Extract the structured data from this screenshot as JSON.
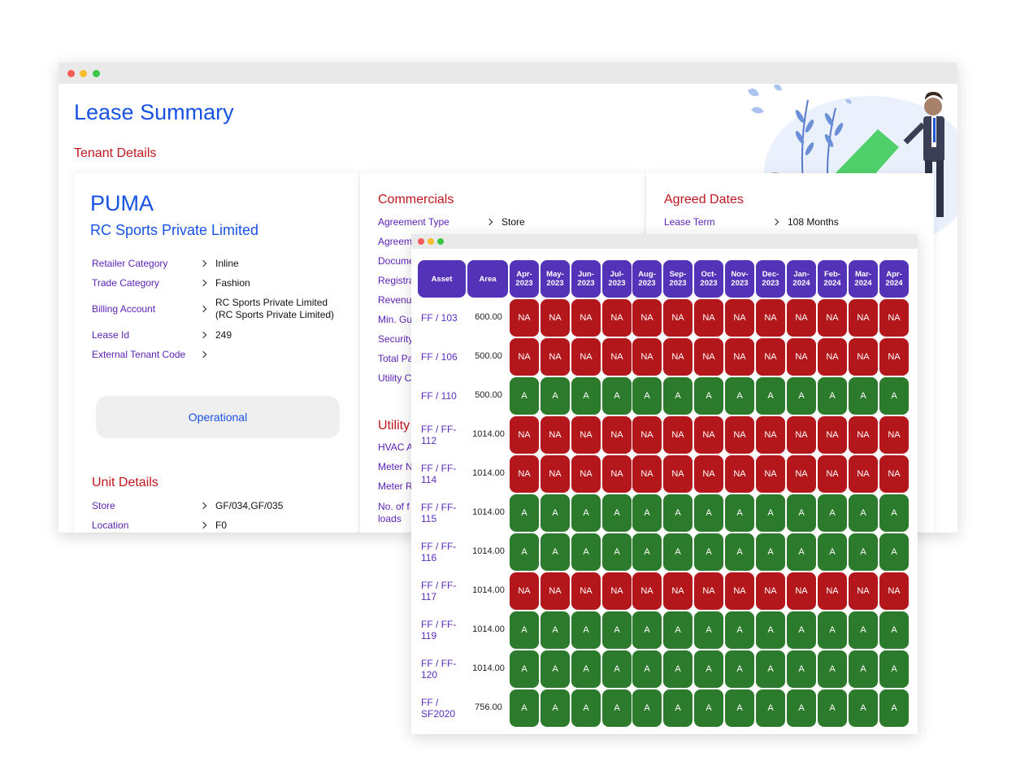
{
  "main": {
    "page_title": "Lease Summary",
    "tenant_section_title": "Tenant Details",
    "tenant": {
      "brand": "PUMA",
      "company": "RC Sports Private Limited",
      "details": [
        {
          "label": "Retailer Category",
          "value": "Inline"
        },
        {
          "label": "Trade Category",
          "value": "Fashion"
        },
        {
          "label": "Billing Account",
          "value": "RC Sports Private Limited",
          "value2": "(RC Sports Private Limited)"
        },
        {
          "label": "Lease Id",
          "value": "249"
        },
        {
          "label": "External Tenant Code",
          "value": ""
        }
      ],
      "status": "Operational",
      "unit_section_title": "Unit Details",
      "unit_details": [
        {
          "label": "Store",
          "value": "GF/034,GF/035"
        },
        {
          "label": "Location",
          "value": "F0"
        }
      ]
    },
    "commercials": {
      "title": "Commercials",
      "rows": [
        {
          "label": "Agreement Type",
          "value": "Store"
        },
        {
          "label": "Agreem",
          "value": ""
        },
        {
          "label": "Docume",
          "value": ""
        },
        {
          "label": "Registra",
          "value": ""
        },
        {
          "label": "Revenu",
          "value": ""
        },
        {
          "label": "Min. Gu",
          "value": ""
        },
        {
          "label": "Security",
          "value": ""
        },
        {
          "label": "Total Pa",
          "value": ""
        },
        {
          "label": "Utility C",
          "value": ""
        }
      ],
      "utility_title": "Utility",
      "utility_rows": [
        {
          "label": "HVAC A"
        },
        {
          "label": "Meter N"
        },
        {
          "label": "Meter R"
        },
        {
          "label": "No. of f",
          "label2": "loads"
        }
      ]
    },
    "agreed_dates": {
      "title": "Agreed Dates",
      "rows": [
        {
          "label": "Lease Term",
          "value": "108 Months"
        }
      ]
    }
  },
  "grid": {
    "asset_header": "Asset",
    "area_header": "Area",
    "months": [
      [
        "Apr-",
        "2023"
      ],
      [
        "May-",
        "2023"
      ],
      [
        "Jun-",
        "2023"
      ],
      [
        "Jul-",
        "2023"
      ],
      [
        "Aug-",
        "2023"
      ],
      [
        "Sep-",
        "2023"
      ],
      [
        "Oct-",
        "2023"
      ],
      [
        "Nov-",
        "2023"
      ],
      [
        "Dec-",
        "2023"
      ],
      [
        "Jan-",
        "2024"
      ],
      [
        "Feb-",
        "2024"
      ],
      [
        "Mar-",
        "2024"
      ],
      [
        "Apr-",
        "2024"
      ]
    ],
    "rows": [
      {
        "asset": [
          "FF / 103"
        ],
        "area": "600.00",
        "status": "NA"
      },
      {
        "asset": [
          "FF / 106"
        ],
        "area": "500.00",
        "status": "NA"
      },
      {
        "asset": [
          "FF / 110"
        ],
        "area": "500.00",
        "status": "A"
      },
      {
        "asset": [
          "FF / FF-",
          "112"
        ],
        "area": "1014.00",
        "status": "NA"
      },
      {
        "asset": [
          "FF / FF-",
          "114"
        ],
        "area": "1014.00",
        "status": "NA"
      },
      {
        "asset": [
          "FF / FF-",
          "115"
        ],
        "area": "1014.00",
        "status": "A"
      },
      {
        "asset": [
          "FF / FF-",
          "116"
        ],
        "area": "1014.00",
        "status": "A"
      },
      {
        "asset": [
          "FF / FF-",
          "117"
        ],
        "area": "1014.00",
        "status": "NA"
      },
      {
        "asset": [
          "FF / FF-",
          "119"
        ],
        "area": "1014.00",
        "status": "A"
      },
      {
        "asset": [
          "FF / FF-",
          "120"
        ],
        "area": "1014.00",
        "status": "A"
      },
      {
        "asset": [
          "FF /",
          "SF2020"
        ],
        "area": "756.00",
        "status": "A"
      }
    ],
    "colors": {
      "na": "#b3161b",
      "a": "#2c7a2c",
      "header": "#5533b8"
    }
  }
}
